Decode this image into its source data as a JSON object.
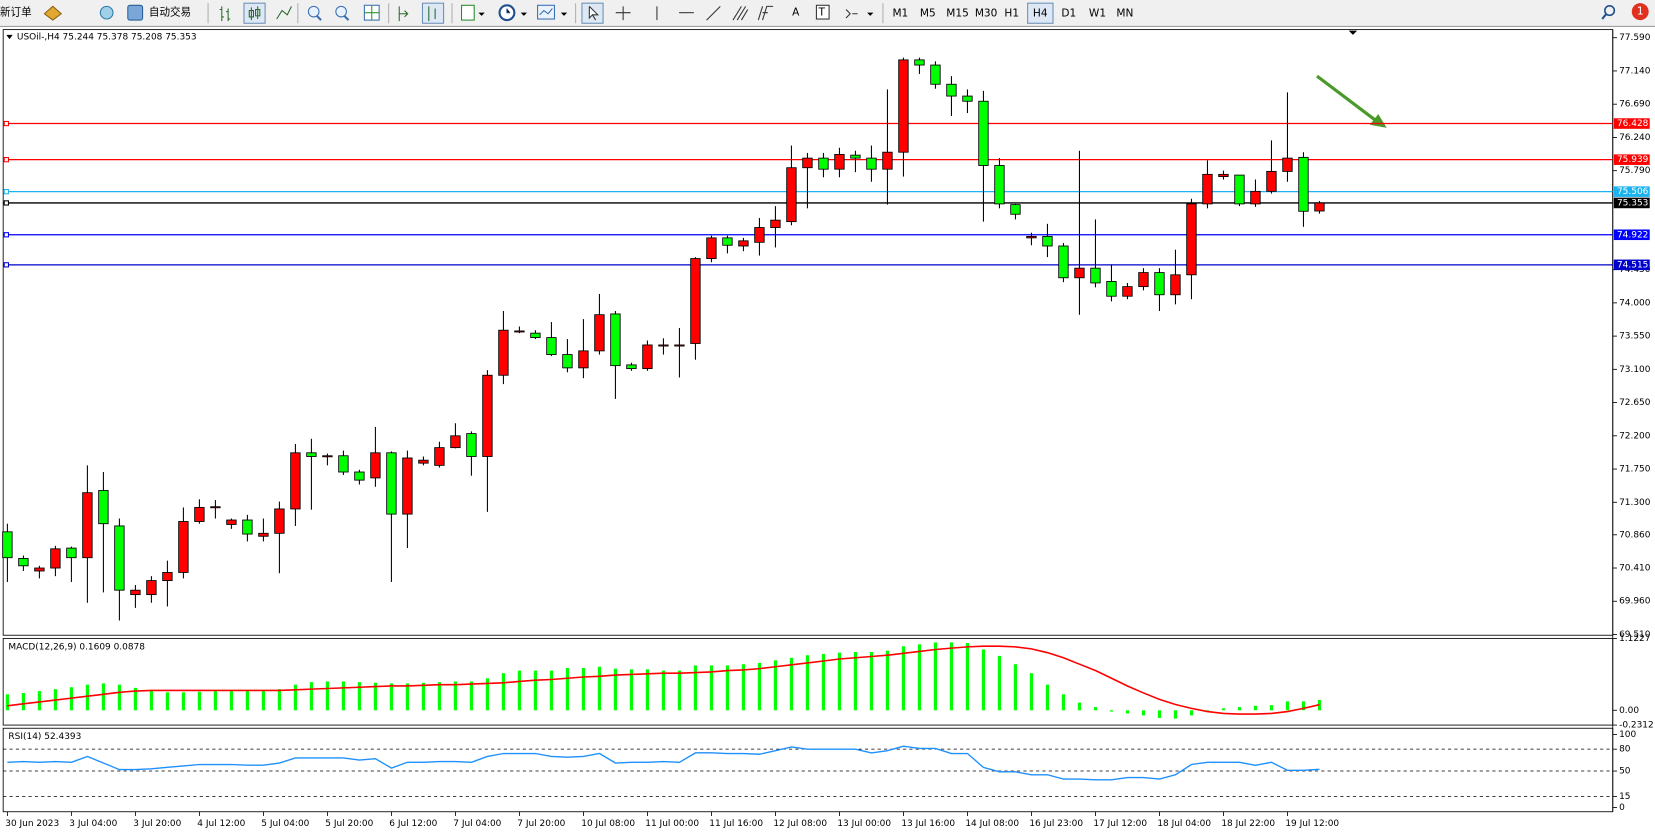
{
  "toolbar": {
    "new_order": "新订单",
    "auto_trading": "自动交易",
    "timeframes": [
      "M1",
      "M5",
      "M15",
      "M30",
      "H1",
      "H4",
      "D1",
      "W1",
      "MN"
    ],
    "notifications": 1
  },
  "chart_data": [
    {
      "type": "candlestick",
      "title": "USOil-,H4 75.244 75.378 75.208 75.353",
      "up_color": "#ff0000",
      "down_color": "#00ff00",
      "categories": [
        "30 Jun 2023",
        null,
        null,
        null,
        "3 Jul 04:00",
        null,
        null,
        null,
        "3 Jul 20:00",
        null,
        null,
        null,
        "4 Jul 12:00",
        null,
        null,
        null,
        "5 Jul 04:00",
        null,
        null,
        null,
        "5 Jul 20:00",
        null,
        null,
        null,
        "6 Jul 12:00",
        null,
        null,
        null,
        "7 Jul 04:00",
        null,
        null,
        null,
        "7 Jul 20:00",
        null,
        null,
        null,
        "10 Jul 08:00",
        null,
        null,
        null,
        "11 Jul 00:00",
        null,
        null,
        null,
        "11 Jul 16:00",
        null,
        null,
        null,
        "12 Jul 08:00",
        null,
        null,
        null,
        "13 Jul 00:00",
        null,
        null,
        null,
        "13 Jul 16:00",
        null,
        null,
        null,
        "14 Jul 08:00",
        null,
        null,
        null,
        "16 Jul 23:00",
        null,
        null,
        null,
        "17 Jul 12:00",
        null,
        null,
        null,
        "18 Jul 04:00",
        null,
        null,
        null,
        "18 Jul 22:00",
        null,
        null,
        null,
        "19 Jul 12:00",
        null,
        null
      ],
      "ohlc": [
        [
          70.9,
          71.01,
          70.22,
          70.55
        ],
        [
          70.54,
          70.58,
          70.37,
          70.44
        ],
        [
          70.37,
          70.44,
          70.27,
          70.41
        ],
        [
          70.41,
          70.71,
          70.3,
          70.67
        ],
        [
          70.68,
          70.7,
          70.22,
          70.55
        ],
        [
          70.55,
          71.8,
          69.94,
          71.43
        ],
        [
          71.46,
          71.71,
          70.08,
          71.01
        ],
        [
          70.98,
          71.08,
          69.7,
          70.11
        ],
        [
          70.05,
          70.18,
          69.87,
          70.11
        ],
        [
          70.05,
          70.3,
          69.94,
          70.24
        ],
        [
          70.24,
          70.51,
          69.89,
          70.35
        ],
        [
          70.35,
          71.23,
          70.27,
          71.04
        ],
        [
          71.04,
          71.34,
          71.01,
          71.23
        ],
        [
          71.23,
          71.33,
          71.08,
          71.24
        ],
        [
          71.0,
          71.08,
          70.94,
          71.06
        ],
        [
          71.06,
          71.13,
          70.77,
          70.87
        ],
        [
          70.84,
          71.08,
          70.77,
          70.88
        ],
        [
          70.88,
          71.31,
          70.34,
          71.21
        ],
        [
          71.21,
          72.09,
          70.98,
          71.97
        ],
        [
          71.97,
          72.16,
          71.2,
          71.92
        ],
        [
          71.93,
          71.96,
          71.8,
          71.93
        ],
        [
          71.93,
          72.0,
          71.67,
          71.71
        ],
        [
          71.71,
          71.74,
          71.54,
          71.6
        ],
        [
          71.63,
          72.32,
          71.51,
          71.97
        ],
        [
          71.97,
          71.99,
          70.22,
          71.14
        ],
        [
          71.14,
          72.0,
          70.68,
          71.9
        ],
        [
          71.83,
          71.92,
          71.8,
          71.87
        ],
        [
          71.8,
          72.12,
          71.77,
          72.04
        ],
        [
          72.04,
          72.37,
          72.03,
          72.2
        ],
        [
          72.23,
          72.26,
          71.66,
          71.92
        ],
        [
          71.92,
          73.09,
          71.17,
          73.02
        ],
        [
          73.02,
          73.89,
          72.9,
          73.63
        ],
        [
          73.62,
          73.68,
          73.59,
          73.62
        ],
        [
          73.59,
          73.63,
          73.51,
          73.53
        ],
        [
          73.53,
          73.74,
          73.28,
          73.3
        ],
        [
          73.3,
          73.51,
          73.06,
          73.12
        ],
        [
          73.12,
          73.78,
          72.98,
          73.35
        ],
        [
          73.35,
          74.12,
          73.3,
          73.84
        ],
        [
          73.85,
          73.89,
          72.7,
          73.15
        ],
        [
          73.16,
          73.19,
          73.08,
          73.11
        ],
        [
          73.11,
          73.49,
          73.08,
          73.43
        ],
        [
          73.43,
          73.52,
          73.3,
          73.43
        ],
        [
          73.42,
          73.66,
          72.99,
          73.43
        ],
        [
          73.45,
          74.62,
          73.23,
          74.6
        ],
        [
          74.6,
          74.91,
          74.55,
          74.88
        ],
        [
          74.88,
          74.91,
          74.67,
          74.78
        ],
        [
          74.77,
          74.88,
          74.7,
          74.84
        ],
        [
          74.82,
          75.15,
          74.64,
          75.02
        ],
        [
          75.02,
          75.31,
          74.75,
          75.12
        ],
        [
          75.1,
          76.13,
          75.05,
          75.83
        ],
        [
          75.83,
          76.03,
          75.28,
          75.96
        ],
        [
          75.96,
          76.03,
          75.7,
          75.81
        ],
        [
          75.81,
          76.1,
          75.7,
          76.01
        ],
        [
          76.0,
          76.06,
          75.77,
          75.96
        ],
        [
          75.96,
          76.13,
          75.64,
          75.81
        ],
        [
          75.81,
          76.89,
          75.33,
          76.04
        ],
        [
          76.04,
          77.32,
          75.71,
          77.29
        ],
        [
          77.29,
          77.32,
          77.1,
          77.22
        ],
        [
          77.22,
          77.27,
          76.9,
          76.96
        ],
        [
          76.96,
          77.07,
          76.53,
          76.8
        ],
        [
          76.8,
          76.89,
          76.57,
          76.73
        ],
        [
          76.73,
          76.87,
          75.1,
          75.86
        ],
        [
          75.86,
          75.96,
          75.28,
          75.34
        ],
        [
          75.33,
          75.34,
          75.13,
          75.2
        ],
        [
          74.88,
          74.95,
          74.78,
          74.9
        ],
        [
          74.9,
          75.07,
          74.62,
          74.77
        ],
        [
          74.77,
          74.81,
          74.28,
          74.34
        ],
        [
          74.34,
          76.06,
          73.84,
          74.47
        ],
        [
          74.47,
          75.13,
          74.21,
          74.27
        ],
        [
          74.29,
          74.52,
          74.02,
          74.09
        ],
        [
          74.09,
          74.27,
          74.05,
          74.22
        ],
        [
          74.22,
          74.47,
          74.17,
          74.41
        ],
        [
          74.41,
          74.47,
          73.89,
          74.11
        ],
        [
          74.11,
          74.72,
          73.98,
          74.38
        ],
        [
          74.38,
          75.41,
          74.05,
          75.34
        ],
        [
          75.34,
          75.93,
          75.28,
          75.74
        ],
        [
          75.71,
          75.79,
          75.67,
          75.74
        ],
        [
          75.73,
          75.73,
          75.31,
          75.34
        ],
        [
          75.34,
          75.67,
          75.3,
          75.51
        ],
        [
          75.51,
          76.2,
          75.48,
          75.78
        ],
        [
          75.78,
          76.85,
          75.64,
          75.96
        ],
        [
          75.97,
          76.04,
          75.03,
          75.24
        ],
        [
          75.244,
          75.378,
          75.208,
          75.353
        ]
      ],
      "ylim": [
        69.5,
        77.7
      ],
      "yticks": [
        {
          "value": 77.59,
          "label": "77.590"
        },
        {
          "value": 77.14,
          "label": "77.140"
        },
        {
          "value": 76.69,
          "label": "76.690"
        },
        {
          "value": 76.24,
          "label": "76.240"
        },
        {
          "value": 75.79,
          "label": "75.790"
        },
        {
          "value": 74.45,
          "label": "74.450"
        },
        {
          "value": 74,
          "label": "74.000"
        },
        {
          "value": 73.55,
          "label": "73.550"
        },
        {
          "value": 73.1,
          "label": "73.100"
        },
        {
          "value": 72.65,
          "label": "72.650"
        },
        {
          "value": 72.2,
          "label": "72.200"
        },
        {
          "value": 71.75,
          "label": "71.750"
        },
        {
          "value": 71.3,
          "label": "71.300"
        },
        {
          "value": 70.86,
          "label": "70.860"
        },
        {
          "value": 70.41,
          "label": "70.410"
        },
        {
          "value": 69.96,
          "label": "69.960"
        },
        {
          "value": 69.51,
          "label": "69.510"
        }
      ],
      "hlines": [
        {
          "value": 76.428,
          "color": "#ff0000"
        },
        {
          "value": 75.939,
          "color": "#ff0000"
        },
        {
          "value": 75.506,
          "color": "#1cb4f0"
        },
        {
          "value": 75.353,
          "color": "#000000"
        },
        {
          "value": 74.922,
          "color": "#0000ff"
        },
        {
          "value": 74.515,
          "color": "#0000cc"
        }
      ]
    },
    {
      "type": "macd",
      "title": "MACD(12,26,9) 0.1609 0.0878",
      "series": [
        {
          "kind": "bar",
          "color": "#00ff00",
          "values": [
            0.25,
            0.27,
            0.3,
            0.33,
            0.36,
            0.4,
            0.42,
            0.4,
            0.35,
            0.3,
            0.28,
            0.28,
            0.29,
            0.3,
            0.3,
            0.3,
            0.3,
            0.33,
            0.4,
            0.44,
            0.45,
            0.45,
            0.44,
            0.43,
            0.42,
            0.42,
            0.43,
            0.44,
            0.45,
            0.45,
            0.5,
            0.58,
            0.62,
            0.62,
            0.62,
            0.66,
            0.66,
            0.68,
            0.65,
            0.64,
            0.64,
            0.62,
            0.62,
            0.7,
            0.7,
            0.7,
            0.72,
            0.74,
            0.78,
            0.82,
            0.86,
            0.88,
            0.9,
            0.91,
            0.91,
            0.93,
            1.0,
            1.03,
            1.06,
            1.06,
            1.05,
            0.95,
            0.85,
            0.72,
            0.58,
            0.4,
            0.25,
            0.12,
            0.05,
            -0.02,
            -0.05,
            -0.08,
            -0.12,
            -0.13,
            -0.08,
            -0.02,
            0.03,
            0.05,
            0.07,
            0.08,
            0.14,
            0.14,
            0.1609
          ]
        },
        {
          "kind": "line",
          "color": "#ff0000",
          "values": [
            0.07,
            0.1,
            0.13,
            0.16,
            0.19,
            0.22,
            0.25,
            0.28,
            0.3,
            0.31,
            0.31,
            0.31,
            0.31,
            0.31,
            0.31,
            0.31,
            0.31,
            0.31,
            0.32,
            0.33,
            0.34,
            0.35,
            0.36,
            0.37,
            0.38,
            0.38,
            0.39,
            0.4,
            0.4,
            0.41,
            0.42,
            0.43,
            0.45,
            0.47,
            0.48,
            0.5,
            0.52,
            0.53,
            0.55,
            0.56,
            0.57,
            0.58,
            0.58,
            0.59,
            0.6,
            0.62,
            0.63,
            0.65,
            0.68,
            0.71,
            0.74,
            0.77,
            0.8,
            0.82,
            0.84,
            0.86,
            0.89,
            0.92,
            0.95,
            0.97,
            0.99,
            1.0,
            1.0,
            0.99,
            0.96,
            0.9,
            0.82,
            0.72,
            0.62,
            0.5,
            0.38,
            0.27,
            0.17,
            0.09,
            0.03,
            -0.02,
            -0.05,
            -0.06,
            -0.06,
            -0.05,
            -0.02,
            0.03,
            0.0878
          ]
        }
      ],
      "ylim": [
        -0.2312,
        1.1227
      ],
      "yticks": [
        1.1227,
        {
          "value": 0,
          "label": "0.00"
        },
        -0.2312
      ]
    },
    {
      "type": "line",
      "title": "RSI(14) 52.4393",
      "color": "#1e90ff",
      "values": [
        62,
        63,
        62,
        63,
        62,
        70,
        61,
        52,
        52,
        53,
        55,
        57,
        59,
        59,
        59,
        58,
        58,
        61,
        68,
        68,
        68,
        68,
        65,
        67,
        54,
        62,
        62,
        63,
        63,
        62,
        70,
        74,
        74,
        74,
        70,
        69,
        70,
        74,
        61,
        62,
        62,
        63,
        62,
        75,
        75,
        74,
        74,
        73,
        78,
        83,
        80,
        80,
        80,
        80,
        75,
        78,
        84,
        81,
        81,
        74,
        74,
        55,
        49,
        49,
        45,
        45,
        39,
        39,
        38,
        38,
        41,
        41,
        39,
        45,
        59,
        62,
        62,
        62,
        58,
        62,
        51,
        51,
        52.4393
      ],
      "ylim": [
        0,
        100
      ],
      "yticks": [
        100,
        80,
        50,
        15,
        0
      ],
      "levels": [
        80,
        50,
        15
      ]
    }
  ]
}
